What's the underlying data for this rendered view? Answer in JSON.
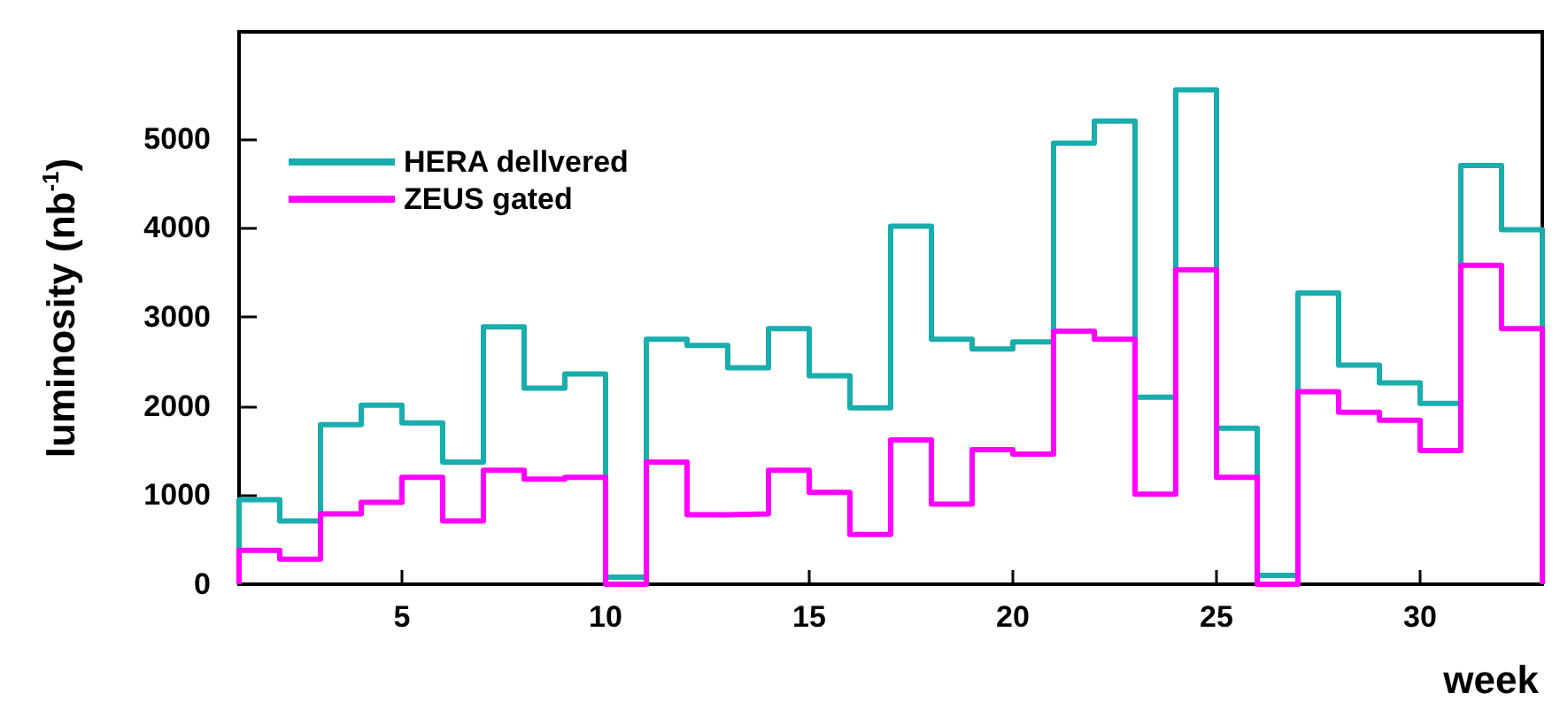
{
  "chart_data": {
    "type": "histogram",
    "xlabel": "week",
    "ylabel": "luminosity (nb$^{-1}$)",
    "bins": [
      1,
      2,
      3,
      4,
      5,
      6,
      7,
      8,
      9,
      10,
      11,
      12,
      13,
      14,
      15,
      16,
      17,
      18,
      19,
      20,
      21,
      22,
      23,
      24,
      25,
      26,
      27,
      28,
      29,
      30,
      31,
      32,
      33
    ],
    "series": [
      {
        "name": "HERA dellvered",
        "color": "#1aadad",
        "values": [
          950,
          710,
          1790,
          2010,
          1810,
          1370,
          2890,
          2200,
          2360,
          80,
          2750,
          2680,
          2430,
          2870,
          2340,
          1980,
          4020,
          2750,
          2640,
          2720,
          4950,
          5200,
          2100,
          5550,
          1750,
          100,
          3270,
          2460,
          2260,
          2030,
          4700,
          3980
        ]
      },
      {
        "name": "ZEUS gated",
        "color": "#ff00ff",
        "values": [
          380,
          280,
          790,
          920,
          1200,
          710,
          1280,
          1180,
          1200,
          0,
          1370,
          780,
          790,
          1280,
          1030,
          560,
          1620,
          900,
          1510,
          1460,
          2840,
          2750,
          1010,
          3530,
          1200,
          0,
          2160,
          1930,
          1840,
          1500,
          3580,
          2870
        ]
      }
    ],
    "xlim": [
      1,
      33
    ],
    "xticks": [
      5,
      10,
      15,
      20,
      25,
      30
    ],
    "ylim": [
      0,
      6200
    ],
    "yticks": [
      0,
      1000,
      2000,
      3000,
      4000,
      5000
    ],
    "legend": "top left",
    "grid": false
  }
}
